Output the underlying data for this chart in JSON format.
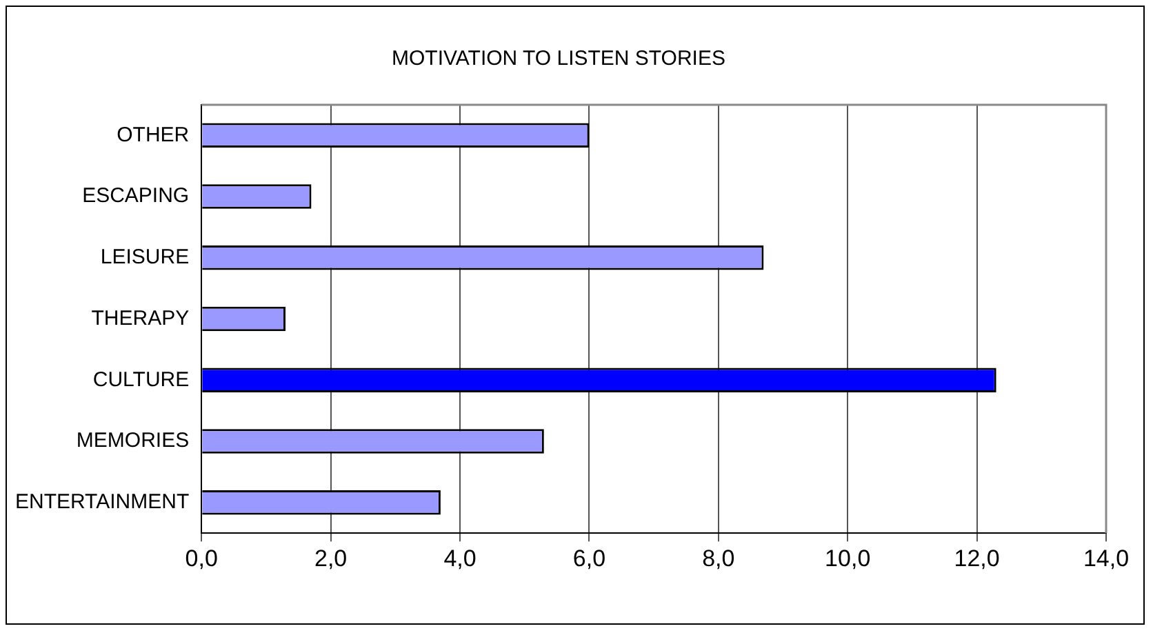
{
  "chart_data": {
    "type": "bar",
    "orientation": "horizontal",
    "title": "MOTIVATION TO LISTEN STORIES",
    "categories": [
      "OTHER",
      "ESCAPING",
      "LEISURE",
      "THERAPY",
      "CULTURE",
      "MEMORIES",
      "ENTERTAINMENT"
    ],
    "values": [
      6.0,
      1.7,
      8.7,
      1.3,
      12.3,
      5.3,
      3.7
    ],
    "colors": [
      "#9999ff",
      "#9999ff",
      "#9999ff",
      "#9999ff",
      "#0000ff",
      "#9999ff",
      "#9999ff"
    ],
    "xlim": [
      0,
      14
    ],
    "xticks": [
      {
        "value": 0,
        "label": "0,0"
      },
      {
        "value": 2,
        "label": "2,0"
      },
      {
        "value": 4,
        "label": "4,0"
      },
      {
        "value": 6,
        "label": "6,0"
      },
      {
        "value": 8,
        "label": "8,0"
      },
      {
        "value": 10,
        "label": "10,0"
      },
      {
        "value": 12,
        "label": "12,0"
      },
      {
        "value": 14,
        "label": "14,0"
      }
    ],
    "grid": "x",
    "legend": false
  }
}
